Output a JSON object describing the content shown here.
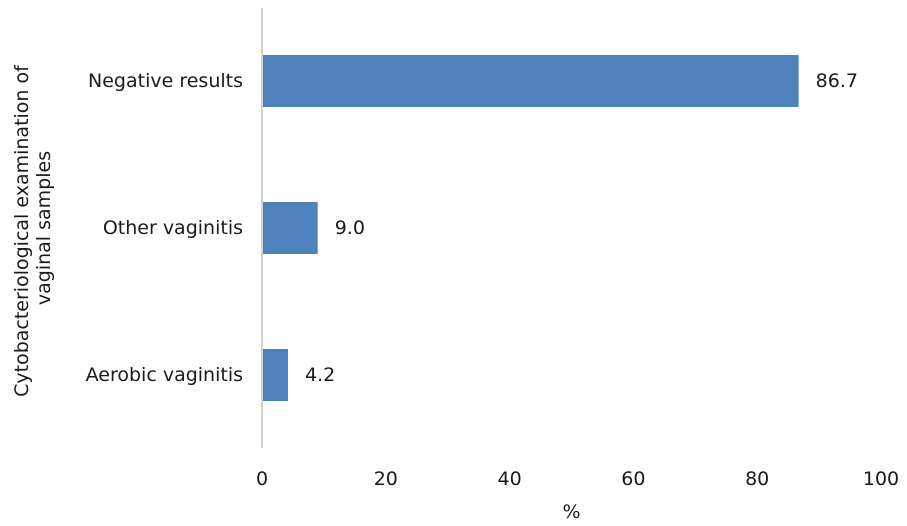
{
  "chart_data": {
    "type": "bar",
    "orientation": "horizontal",
    "title": "",
    "xlabel": "%",
    "ylabel_lines": [
      "Cytobacteriological examination of",
      "vaginal samples"
    ],
    "categories": [
      "Negative results",
      "Other vaginitis",
      "Aerobic vaginitis"
    ],
    "values": [
      86.7,
      9.0,
      4.2
    ],
    "value_labels": [
      "86.7",
      "9.0",
      "4.2"
    ],
    "xlim": [
      0,
      100
    ],
    "xticks": [
      0,
      20,
      40,
      60,
      80,
      100
    ],
    "xtick_labels": [
      "0",
      "20",
      "40",
      "60",
      "80",
      "100"
    ],
    "grid": false,
    "legend": "none",
    "bar_color": "#4f81bd",
    "axis_color": "#d0d0d0"
  }
}
